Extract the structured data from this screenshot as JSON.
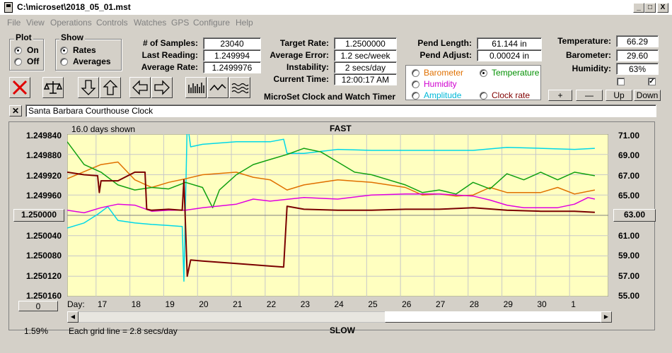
{
  "window": {
    "title": "C:\\microset\\2018_05_01.mst",
    "min_label": "_",
    "max_label": "□",
    "close_label": "X"
  },
  "menu": [
    "File",
    "View",
    "Operations",
    "Controls",
    "Watches",
    "GPS",
    "Configure",
    "Help"
  ],
  "plot": {
    "title": "Plot",
    "options": [
      "On",
      "Off"
    ],
    "selected": "On"
  },
  "show": {
    "title": "Show",
    "options": [
      "Rates",
      "Averages"
    ],
    "selected": "Rates"
  },
  "stats": [
    {
      "label": "# of Samples:",
      "value": "23040"
    },
    {
      "label": "Last Reading:",
      "value": "1.249994"
    },
    {
      "label": "Average Rate:",
      "value": "1.2499976"
    }
  ],
  "rates": [
    {
      "label": "Target Rate:",
      "value": "1.2500000"
    },
    {
      "label": "Average Error:",
      "value": "1.2 sec/week"
    },
    {
      "label": "Instability:",
      "value": "2 secs/day"
    },
    {
      "label": "Current Time:",
      "value": "12:00:17 AM"
    }
  ],
  "subtitle": "MicroSet Clock and Watch Timer",
  "pendulum": [
    {
      "label": "Pend Length:",
      "value": "61.144 in"
    },
    {
      "label": "Pend Adjust:",
      "value": "0.00024 in"
    }
  ],
  "sensor_select": [
    {
      "label": "Barometer",
      "color": "#e07000",
      "selected": false
    },
    {
      "label": "Temperature",
      "color": "#009000",
      "selected": true
    },
    {
      "label": "Humidity",
      "color": "#d000d0",
      "selected": false
    },
    {
      "label": "Amplitude",
      "color": "#00b8d8",
      "selected": false
    },
    {
      "label": "Clock rate",
      "color": "#800000",
      "selected": false
    }
  ],
  "environment": [
    {
      "label": "Temperature:",
      "value": "66.29"
    },
    {
      "label": "Barometer:",
      "value": "29.60"
    },
    {
      "label": "Humidity:",
      "value": "63%"
    }
  ],
  "checkboxes": [
    {
      "checked": false
    },
    {
      "checked": true
    }
  ],
  "axis_buttons": [
    "+",
    "—",
    "Up",
    "Down"
  ],
  "clock_name": "Santa Barbara Courthouse Clock",
  "clear_label": "✕",
  "chart_data": {
    "type": "line",
    "days_shown": "16.0 days shown",
    "top_label": "FAST",
    "bottom_label": "SLOW",
    "grid_note": "Each grid line = 2.8 secs/day",
    "left_axis": {
      "ticks": [
        "1.249840",
        "1.249880",
        "1.249920",
        "1.249960",
        "1.250000",
        "1.250040",
        "1.250080",
        "1.250120",
        "1.250160"
      ],
      "range": [
        1.24984,
        1.25016
      ],
      "inverted": true
    },
    "right_axis": {
      "ticks": [
        "71.00",
        "69.00",
        "67.00",
        "65.00",
        "63.00",
        "61.00",
        "59.00",
        "57.00",
        "55.00"
      ],
      "range": [
        55,
        71
      ]
    },
    "left_box": "1.250000",
    "right_box": "63.00",
    "x_box": "0",
    "x_label": "Day:",
    "x_ticks": [
      "17",
      "18",
      "19",
      "20",
      "21",
      "22",
      "23",
      "24",
      "25",
      "26",
      "27",
      "28",
      "29",
      "30",
      "1"
    ],
    "percent": "1.59%",
    "series": [
      {
        "color": "#00d8e8",
        "values": [
          [
            16.0,
            1.250025
          ],
          [
            16.5,
            1.250015
          ],
          [
            16.9,
            1.249998
          ],
          [
            17.2,
            1.249983
          ],
          [
            17.5,
            1.25001
          ],
          [
            18.0,
            1.250015
          ],
          [
            18.5,
            1.250018
          ],
          [
            19.0,
            1.25002
          ],
          [
            19.4,
            1.250022
          ],
          [
            19.45,
            1.25013
          ],
          [
            19.55,
            1.249815
          ],
          [
            19.65,
            1.249865
          ],
          [
            20.0,
            1.24986
          ],
          [
            21.0,
            1.249855
          ],
          [
            22.0,
            1.249855
          ],
          [
            22.4,
            1.24985
          ],
          [
            22.5,
            1.249878
          ],
          [
            23.0,
            1.249878
          ],
          [
            24.0,
            1.24987
          ],
          [
            25.0,
            1.249872
          ],
          [
            26.0,
            1.249872
          ],
          [
            27.0,
            1.249872
          ],
          [
            28.0,
            1.249872
          ],
          [
            29.0,
            1.249866
          ],
          [
            30.0,
            1.249868
          ],
          [
            31.0,
            1.24987
          ],
          [
            31.6,
            1.249868
          ]
        ]
      },
      {
        "color": "#e07000",
        "values": [
          [
            16.0,
            1.249928
          ],
          [
            17.0,
            1.2499
          ],
          [
            17.5,
            1.249895
          ],
          [
            18.0,
            1.24993
          ],
          [
            18.5,
            1.249945
          ],
          [
            19.0,
            1.249935
          ],
          [
            19.5,
            1.249928
          ],
          [
            20.0,
            1.24992
          ],
          [
            21.0,
            1.249915
          ],
          [
            21.5,
            1.249925
          ],
          [
            22.0,
            1.24993
          ],
          [
            22.5,
            1.24995
          ],
          [
            23.0,
            1.24994
          ],
          [
            24.0,
            1.24993
          ],
          [
            25.0,
            1.249935
          ],
          [
            26.0,
            1.249945
          ],
          [
            26.5,
            1.24996
          ],
          [
            27.0,
            1.249958
          ],
          [
            27.5,
            1.249962
          ],
          [
            28.0,
            1.24996
          ],
          [
            28.5,
            1.249945
          ],
          [
            29.0,
            1.249955
          ],
          [
            30.0,
            1.249955
          ],
          [
            30.5,
            1.249945
          ],
          [
            31.0,
            1.249958
          ],
          [
            31.6,
            1.24995
          ]
        ]
      },
      {
        "color": "#10a010",
        "values": [
          [
            16.0,
            1.249855
          ],
          [
            16.5,
            1.2499
          ],
          [
            17.0,
            1.249915
          ],
          [
            17.5,
            1.24994
          ],
          [
            18.0,
            1.24995
          ],
          [
            18.5,
            1.249945
          ],
          [
            19.0,
            1.249948
          ],
          [
            19.5,
            1.249935
          ],
          [
            20.0,
            1.249945
          ],
          [
            20.3,
            1.249985
          ],
          [
            20.5,
            1.24995
          ],
          [
            21.0,
            1.24992
          ],
          [
            21.5,
            1.2499
          ],
          [
            22.0,
            1.24989
          ],
          [
            22.5,
            1.24988
          ],
          [
            23.0,
            1.249868
          ],
          [
            23.5,
            1.249875
          ],
          [
            24.0,
            1.249895
          ],
          [
            24.5,
            1.249915
          ],
          [
            25.0,
            1.24992
          ],
          [
            26.0,
            1.24994
          ],
          [
            26.5,
            1.249955
          ],
          [
            27.0,
            1.24995
          ],
          [
            27.5,
            1.249958
          ],
          [
            28.0,
            1.249935
          ],
          [
            28.5,
            1.249948
          ],
          [
            29.0,
            1.249918
          ],
          [
            29.5,
            1.24993
          ],
          [
            30.0,
            1.249915
          ],
          [
            30.5,
            1.24993
          ],
          [
            31.0,
            1.249915
          ],
          [
            31.6,
            1.249922
          ]
        ]
      },
      {
        "color": "#e000e0",
        "values": [
          [
            16.0,
            1.24999
          ],
          [
            16.5,
            1.249995
          ],
          [
            17.0,
            1.249985
          ],
          [
            17.5,
            1.249978
          ],
          [
            18.0,
            1.24998
          ],
          [
            18.5,
            1.249992
          ],
          [
            19.0,
            1.24999
          ],
          [
            19.5,
            1.24999
          ],
          [
            20.0,
            1.249985
          ],
          [
            21.0,
            1.249978
          ],
          [
            21.5,
            1.249968
          ],
          [
            22.0,
            1.249972
          ],
          [
            23.0,
            1.249965
          ],
          [
            24.0,
            1.249968
          ],
          [
            25.0,
            1.24996
          ],
          [
            26.0,
            1.249958
          ],
          [
            27.0,
            1.249958
          ],
          [
            28.0,
            1.249962
          ],
          [
            28.5,
            1.24997
          ],
          [
            29.0,
            1.24998
          ],
          [
            29.5,
            1.249985
          ],
          [
            30.0,
            1.249985
          ],
          [
            30.5,
            1.249985
          ],
          [
            31.0,
            1.249978
          ],
          [
            31.4,
            1.249965
          ],
          [
            31.6,
            1.249968
          ]
        ]
      },
      {
        "color": "#7a0000",
        "values": [
          [
            16.0,
            1.249915
          ],
          [
            16.5,
            1.24992
          ],
          [
            16.9,
            1.249922
          ],
          [
            16.95,
            1.249955
          ],
          [
            17.0,
            1.249932
          ],
          [
            17.5,
            1.249932
          ],
          [
            18.0,
            1.249915
          ],
          [
            18.3,
            1.249915
          ],
          [
            18.35,
            1.249988
          ],
          [
            18.5,
            1.24999
          ],
          [
            19.0,
            1.249988
          ],
          [
            19.4,
            1.24999
          ],
          [
            19.45,
            1.24993
          ],
          [
            19.55,
            1.25012
          ],
          [
            19.65,
            1.250088
          ],
          [
            20.0,
            1.25009
          ],
          [
            21.0,
            1.250095
          ],
          [
            22.0,
            1.2501
          ],
          [
            22.4,
            1.250102
          ],
          [
            22.5,
            1.249982
          ],
          [
            23.0,
            1.249988
          ],
          [
            24.0,
            1.24999
          ],
          [
            25.0,
            1.24999
          ],
          [
            26.0,
            1.249988
          ],
          [
            27.0,
            1.249988
          ],
          [
            28.0,
            1.249985
          ],
          [
            29.0,
            1.24999
          ],
          [
            30.0,
            1.249992
          ],
          [
            31.0,
            1.249992
          ],
          [
            31.6,
            1.249994
          ]
        ]
      }
    ]
  }
}
